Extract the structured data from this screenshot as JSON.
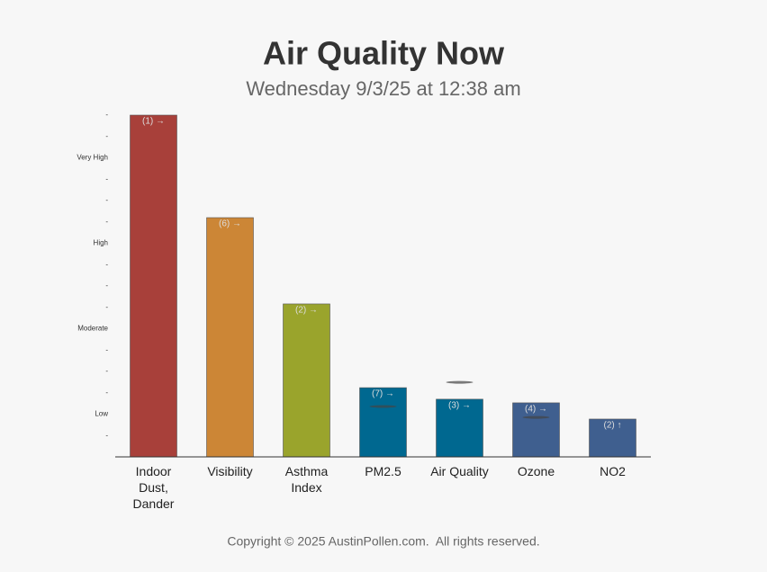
{
  "chart_data": {
    "type": "bar",
    "title": "Air Quality Now",
    "subtitle": "Wednesday 9/3/25 at 12:38 am",
    "categories": [
      "Indoor Dust, Dander",
      "Visibility",
      "Asthma Index",
      "PM2.5",
      "Air Quality",
      "Ozone",
      "NO2"
    ],
    "values": [
      16,
      11.2,
      7.16,
      3.24,
      2.7,
      2.53,
      1.77
    ],
    "colors": [
      "#a8403a",
      "#cc8636",
      "#9aa42c",
      "#006890",
      "#006890",
      "#3f5f8f",
      "#3f5f8f"
    ],
    "annotations": [
      "(1) →",
      "(6) →",
      "(2) →",
      "(7) →",
      "(3) →",
      "(4) →",
      "(2) ↑"
    ],
    "markers": [
      null,
      null,
      null,
      2.36,
      3.49,
      1.85,
      null
    ],
    "ylim": [
      0,
      16
    ],
    "yticks": [
      {
        "value": 1,
        "label": "-"
      },
      {
        "value": 2,
        "label": "Low"
      },
      {
        "value": 3,
        "label": "-"
      },
      {
        "value": 4,
        "label": "-"
      },
      {
        "value": 5,
        "label": "-"
      },
      {
        "value": 6,
        "label": "Moderate"
      },
      {
        "value": 7,
        "label": "-"
      },
      {
        "value": 8,
        "label": "-"
      },
      {
        "value": 9,
        "label": "-"
      },
      {
        "value": 10,
        "label": "High"
      },
      {
        "value": 11,
        "label": "-"
      },
      {
        "value": 12,
        "label": "-"
      },
      {
        "value": 13,
        "label": "-"
      },
      {
        "value": 14,
        "label": "Very High"
      },
      {
        "value": 15,
        "label": "-"
      },
      {
        "value": 16,
        "label": "-"
      }
    ],
    "footer": "Copyright © 2025 AustinPollen.com.  All rights reserved."
  }
}
